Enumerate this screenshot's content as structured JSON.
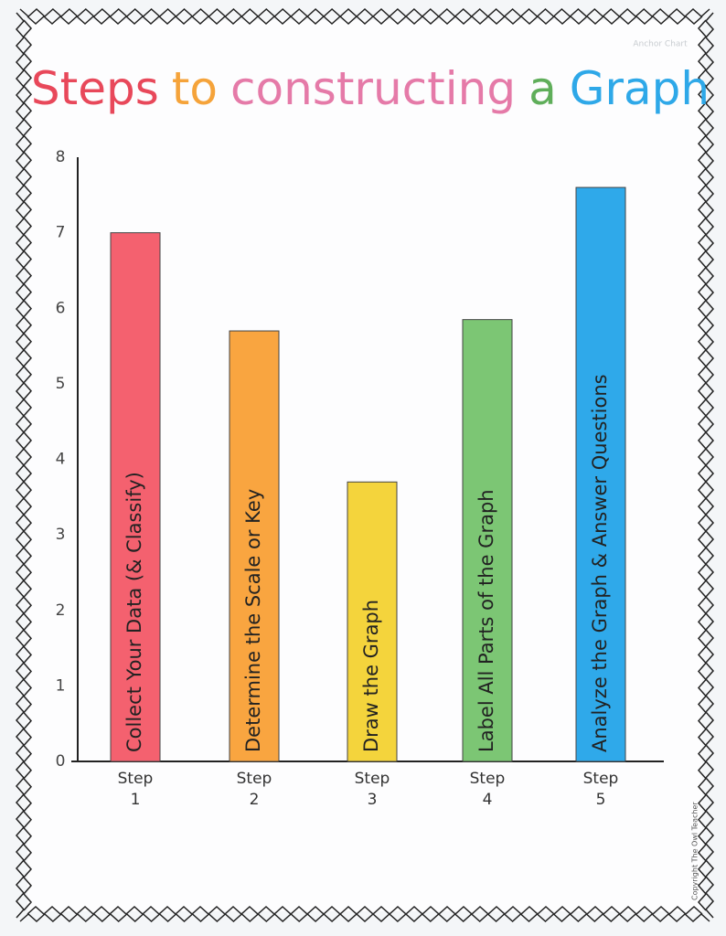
{
  "chart_data": {
    "type": "bar",
    "title_parts": [
      {
        "text": "Steps",
        "color": "#e8485a"
      },
      {
        "text": "to",
        "color": "#f5a33a"
      },
      {
        "text": "constructing",
        "color": "#e57aa8"
      },
      {
        "text": "a",
        "color": "#5fae5a"
      },
      {
        "text": "Graph",
        "color": "#2ea8e8"
      }
    ],
    "categories": [
      "Step\n1",
      "Step\n2",
      "Step\n3",
      "Step\n4",
      "Step\n5"
    ],
    "values": [
      7,
      5.7,
      3.7,
      5.85,
      7.6
    ],
    "bar_labels": [
      "Collect Your Data (& Classify)",
      "Determine the Scale or Key",
      "Draw the Graph",
      "Label All Parts of the Graph",
      "Analyze the Graph & Answer Questions"
    ],
    "colors": [
      "#f4616f",
      "#f9a540",
      "#f4d43c",
      "#7cc674",
      "#2fa9ea"
    ],
    "ylim": [
      0,
      8
    ],
    "yticks": [
      0,
      1,
      2,
      3,
      4,
      5,
      6,
      7,
      8
    ],
    "grid": false,
    "annotations": [
      "Anchor Chart",
      "Copyright The Owl Teacher"
    ]
  }
}
